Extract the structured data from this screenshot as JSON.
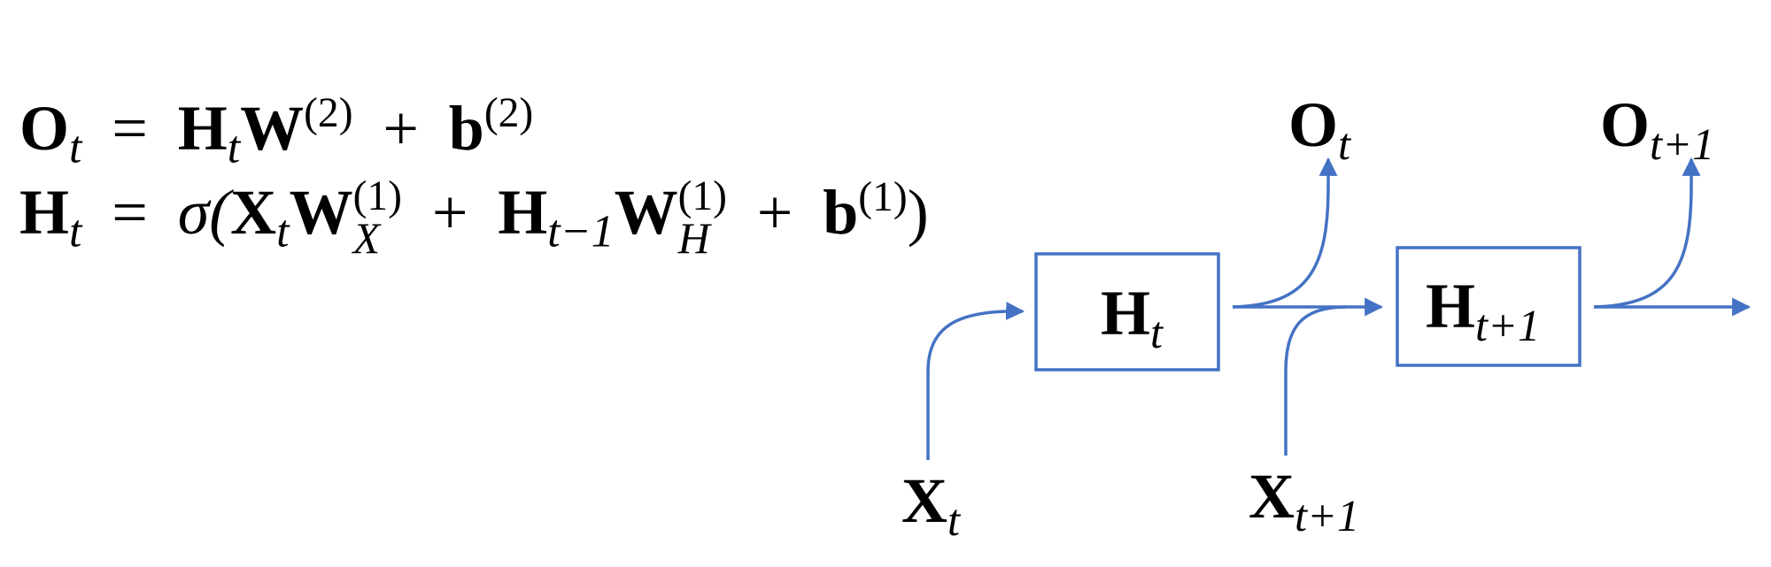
{
  "equations": {
    "output": {
      "lhs": "O",
      "lhs_sub": "t",
      "eq": "=",
      "t1_base": "H",
      "t1_sub": "t",
      "t1_w": "W",
      "t1_sup": "(2)",
      "plus": "+",
      "bias": "b",
      "bias_sup": "(2)"
    },
    "hidden": {
      "lhs": "H",
      "lhs_sub": "t",
      "eq": "=",
      "sigma": "σ(",
      "x": "X",
      "x_sub": "t",
      "wx": "W",
      "wx_sup": "(1)",
      "wx_sub": "X",
      "plus1": "+",
      "h": "H",
      "h_sub": "t−1",
      "wh": "W",
      "wh_sup": "(1)",
      "wh_sub": "H",
      "plus2": "+",
      "bias": "b",
      "bias_sup": "(1)",
      "close": ")"
    }
  },
  "diagram": {
    "edge_color": "#4472c4",
    "node_h_t": {
      "base": "H",
      "sub": "t"
    },
    "node_h_t1": {
      "base": "H",
      "sub": "t+1"
    },
    "out_t": {
      "base": "O",
      "sub": "t"
    },
    "out_t1": {
      "base": "O",
      "sub": "t+1"
    },
    "in_t": {
      "base": "X",
      "sub": "t"
    },
    "in_t1": {
      "base": "X",
      "sub": "t+1"
    }
  }
}
